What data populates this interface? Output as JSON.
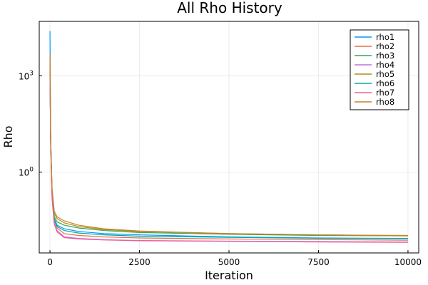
{
  "chart_data": {
    "type": "line",
    "title": "All Rho History",
    "xlabel": "Iteration",
    "ylabel": "Rho",
    "yscale": "log10",
    "grid": true,
    "legend_position": "top-right",
    "xlim": [
      -300,
      10300
    ],
    "ylim": [
      0.003,
      50000
    ],
    "xticks": [
      0,
      2500,
      5000,
      7500,
      10000
    ],
    "xtick_labels": [
      "0",
      "2500",
      "5000",
      "7500",
      "10000"
    ],
    "yticks": [
      1,
      1000
    ],
    "ytick_labels": [
      {
        "base": "10",
        "exp": "0"
      },
      {
        "base": "10",
        "exp": "3"
      }
    ],
    "series": [
      {
        "name": "rho1",
        "color": "#009AFA",
        "x": [
          0,
          20,
          60,
          120,
          200,
          400,
          800,
          1500,
          2500,
          5000,
          7500,
          10000
        ],
        "y": [
          25000,
          12,
          0.2,
          0.035,
          0.022,
          0.017,
          0.014,
          0.012,
          0.011,
          0.0095,
          0.0088,
          0.0085
        ]
      },
      {
        "name": "rho2",
        "color": "#E36F47",
        "x": [
          0,
          20,
          60,
          120,
          200,
          400,
          800,
          1500,
          2500,
          5000,
          7500,
          10000
        ],
        "y": [
          2500,
          10,
          0.18,
          0.03,
          0.018,
          0.012,
          0.0105,
          0.0095,
          0.0088,
          0.0082,
          0.0078,
          0.0075
        ]
      },
      {
        "name": "rho3",
        "color": "#3EA44E",
        "x": [
          0,
          20,
          60,
          120,
          200,
          400,
          800,
          1500,
          2500,
          5000,
          7500,
          10000
        ],
        "y": [
          1500,
          8,
          0.2,
          0.04,
          0.028,
          0.022,
          0.018,
          0.015,
          0.013,
          0.0115,
          0.0105,
          0.0102
        ]
      },
      {
        "name": "rho4",
        "color": "#C371D2",
        "x": [
          0,
          20,
          60,
          120,
          200,
          400,
          800,
          1500,
          2500,
          5000,
          7500,
          10000
        ],
        "y": [
          1200,
          7,
          0.15,
          0.025,
          0.015,
          0.0095,
          0.0085,
          0.0078,
          0.0073,
          0.007,
          0.0068,
          0.0066
        ]
      },
      {
        "name": "rho5",
        "color": "#AC8E18",
        "x": [
          0,
          20,
          60,
          120,
          200,
          400,
          800,
          1500,
          2500,
          5000,
          7500,
          10000
        ],
        "y": [
          1800,
          9,
          0.25,
          0.05,
          0.035,
          0.026,
          0.02,
          0.016,
          0.014,
          0.012,
          0.011,
          0.0105
        ]
      },
      {
        "name": "rho6",
        "color": "#00AAAE",
        "x": [
          0,
          20,
          60,
          120,
          200,
          400,
          800,
          1500,
          2500,
          5000,
          7500,
          10000
        ],
        "y": [
          1300,
          7.5,
          0.17,
          0.032,
          0.02,
          0.015,
          0.0125,
          0.011,
          0.01,
          0.0092,
          0.0086,
          0.0084
        ]
      },
      {
        "name": "rho7",
        "color": "#ED5E93",
        "x": [
          0,
          20,
          60,
          120,
          200,
          400,
          800,
          1500,
          2500,
          5000,
          7500,
          10000
        ],
        "y": [
          1100,
          6.5,
          0.14,
          0.024,
          0.0135,
          0.009,
          0.0082,
          0.0076,
          0.0072,
          0.0069,
          0.0066,
          0.0064
        ]
      },
      {
        "name": "rho8",
        "color": "#C68225",
        "x": [
          0,
          20,
          60,
          120,
          200,
          400,
          800,
          1500,
          2500,
          5000,
          7500,
          10000
        ],
        "y": [
          5000,
          11,
          0.3,
          0.06,
          0.04,
          0.03,
          0.022,
          0.017,
          0.0145,
          0.012,
          0.011,
          0.0102
        ]
      }
    ]
  }
}
